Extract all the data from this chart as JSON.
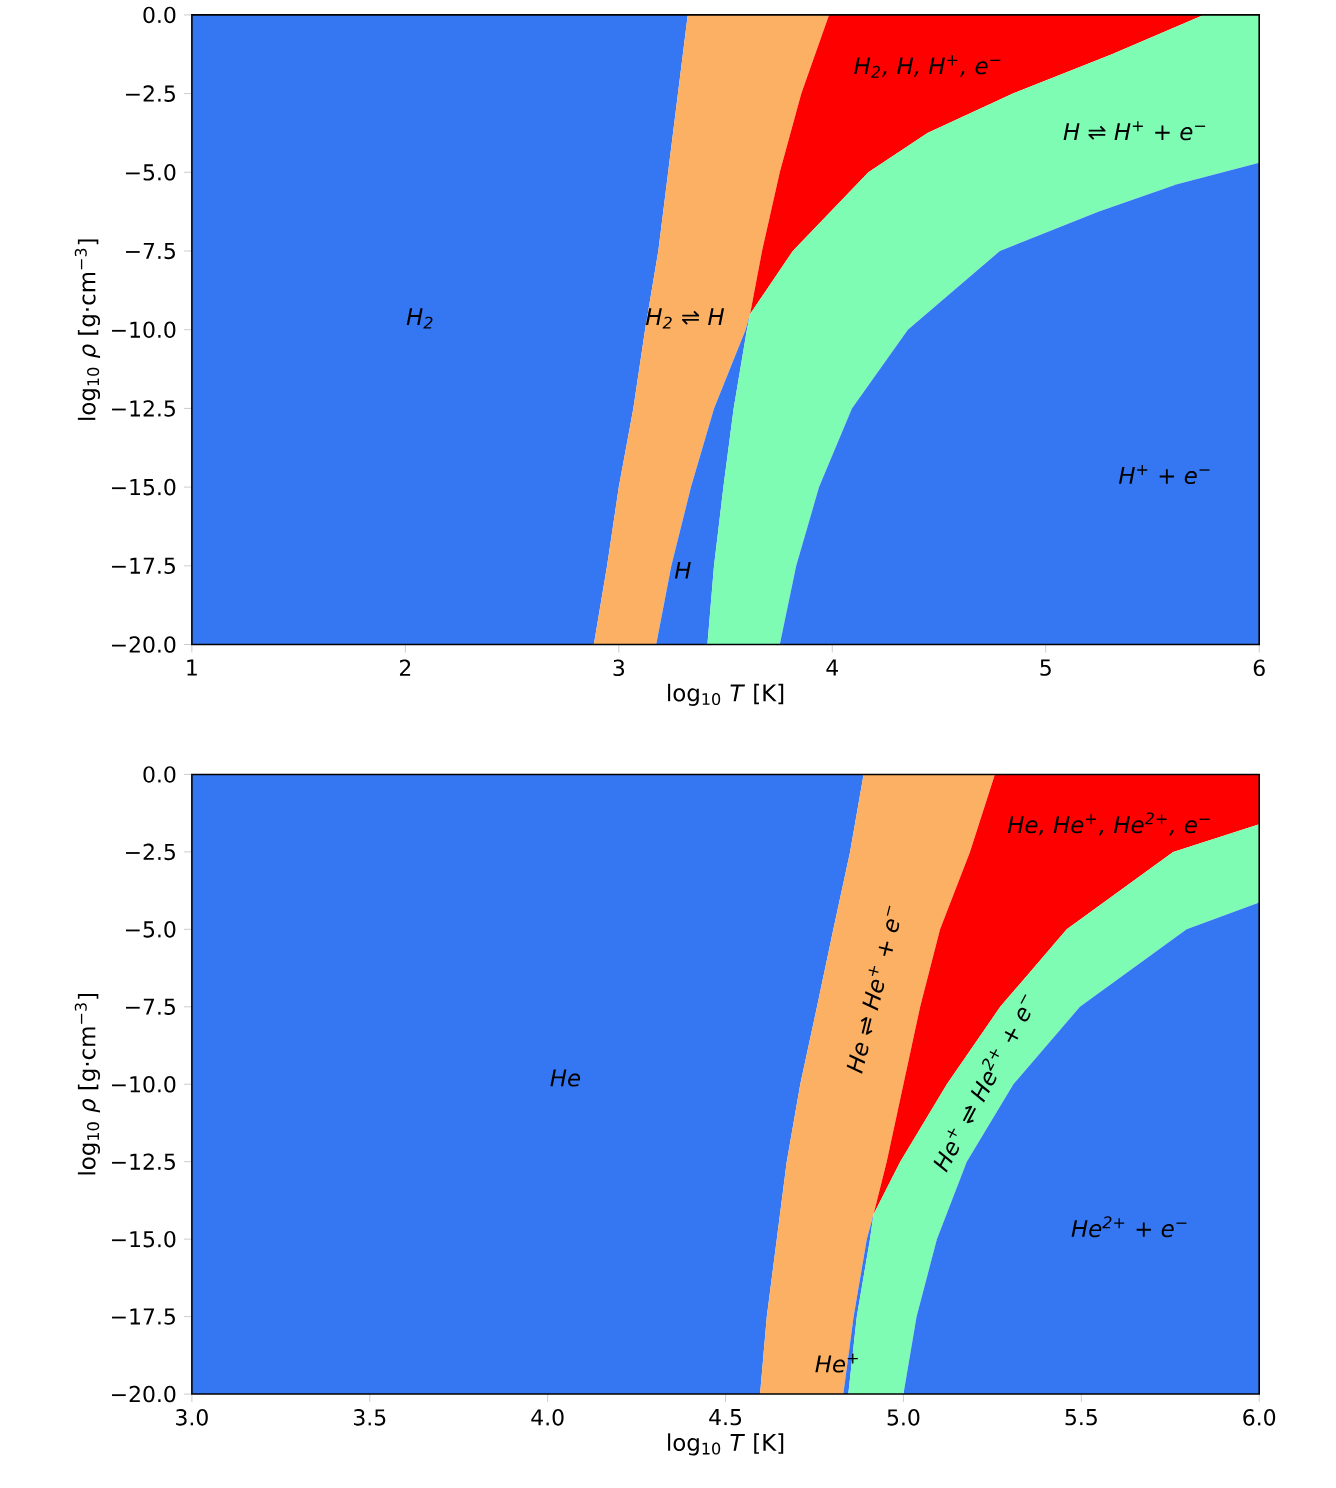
{
  "chart_data": [
    {
      "type": "area",
      "xlabel": "log$_{10}$ *T* [K]",
      "ylabel": "log$_{10}$ *ρ* [g·cm$^{−3}$]",
      "xlim": [
        1,
        6
      ],
      "ylim": [
        -20,
        0
      ],
      "xticks": [
        1,
        2,
        3,
        4,
        5,
        6
      ],
      "yticks": [
        {
          "value": 0,
          "label": "0.0"
        },
        {
          "value": -2.5,
          "label": "−2.5"
        },
        {
          "value": -5,
          "label": "−5.0"
        },
        {
          "value": -7.5,
          "label": "−7.5"
        },
        {
          "value": -10,
          "label": "−10.0"
        },
        {
          "value": -12.5,
          "label": "−12.5"
        },
        {
          "value": -15,
          "label": "−15.0"
        },
        {
          "value": -17.5,
          "label": "−17.5"
        },
        {
          "value": -20,
          "label": "−20.0"
        }
      ],
      "series": [
        {
          "color": "#3577f2",
          "x": [
            1,
            3.323,
            3.277,
            3.231,
            3.185,
            3.123,
            3.068,
            3.0,
            2.945,
            2.883,
            1
          ],
          "values": [
            0,
            0,
            -2.5,
            -5,
            -7.5,
            -10,
            -12.5,
            -15,
            -17.5,
            -20,
            -20
          ]
        },
        {
          "color": "#fcb063",
          "x": [
            3.323,
            3.277,
            3.231,
            3.185,
            3.123,
            3.068,
            3.0,
            2.945,
            2.883,
            3.175,
            3.246,
            3.338,
            3.446,
            3.594,
            3.615,
            3.671,
            3.754,
            3.855,
            3.985
          ],
          "values": [
            0,
            -2.5,
            -5,
            -7.5,
            -10,
            -12.5,
            -15,
            -17.5,
            -20,
            -20,
            -17.5,
            -15,
            -12.5,
            -10,
            -9.5,
            -7.5,
            -5,
            -2.5,
            0
          ]
        },
        {
          "color": "#ff0000",
          "x": [
            3.615,
            3.671,
            3.754,
            3.855,
            3.985,
            5.74,
            5.31,
            4.846,
            4.446,
            4.169,
            3.815
          ],
          "values": [
            -9.5,
            -7.5,
            -5,
            -2.5,
            0,
            0,
            -1.25,
            -2.5,
            -3.75,
            -5,
            -7.5
          ]
        },
        {
          "color": "#3577f2",
          "x": [
            3.615,
            3.594,
            3.446,
            3.338,
            3.246,
            3.175,
            3.415,
            3.446,
            3.49,
            3.538,
            3.6
          ],
          "values": [
            -9.5,
            -10,
            -12.5,
            -15,
            -17.5,
            -20,
            -20,
            -17.5,
            -15,
            -12.5,
            -10
          ]
        },
        {
          "color": "#7efcb3",
          "x": [
            3.415,
            3.446,
            3.49,
            3.538,
            3.6,
            3.615,
            3.815,
            4.169,
            4.446,
            4.846,
            5.31,
            5.74,
            6,
            6,
            5.615,
            5.246,
            4.785,
            4.354,
            4.092,
            3.938,
            3.831,
            3.754
          ],
          "values": [
            -20,
            -17.5,
            -15,
            -12.5,
            -10,
            -9.5,
            -7.5,
            -5,
            -3.75,
            -2.5,
            -1.25,
            0,
            0,
            -4.7,
            -5.38,
            -6.25,
            -7.5,
            -10,
            -12.5,
            -15,
            -17.5,
            -20
          ]
        },
        {
          "color": "#3577f2",
          "x": [
            6,
            6,
            3.754,
            3.831,
            3.938,
            4.092,
            4.354,
            4.785,
            5.246,
            5.615
          ],
          "values": [
            -4.7,
            -20,
            -20,
            -17.5,
            -15,
            -12.5,
            -10,
            -7.5,
            -6.25,
            -5.38
          ]
        }
      ],
      "annotations": [
        "H$_{2}$",
        "H$_{2}$ ⇌ H",
        "H$_{2}$, H, H$^{+}$, e$^{−}$",
        "H ⇌ H$^{+}$ + e$^{−}$",
        "H$^{+}$ + e$^{−}$",
        "H"
      ]
    },
    {
      "type": "area",
      "xlabel": "log$_{10}$ *T* [K]",
      "ylabel": "log$_{10}$ *ρ* [g·cm$^{−3}$]",
      "xlim": [
        3,
        6
      ],
      "ylim": [
        -20,
        0
      ],
      "xticks": [
        {
          "value": 3,
          "label": "3.0"
        },
        {
          "value": 3.5,
          "label": "3.5"
        },
        {
          "value": 4,
          "label": "4.0"
        },
        {
          "value": 4.5,
          "label": "4.5"
        },
        {
          "value": 5,
          "label": "5.0"
        },
        {
          "value": 5.5,
          "label": "5.5"
        },
        {
          "value": 6,
          "label": "6.0"
        }
      ],
      "yticks": [
        {
          "value": 0,
          "label": "0.0"
        },
        {
          "value": -2.5,
          "label": "−2.5"
        },
        {
          "value": -5,
          "label": "−5.0"
        },
        {
          "value": -7.5,
          "label": "−7.5"
        },
        {
          "value": -10,
          "label": "−10.0"
        },
        {
          "value": -12.5,
          "label": "−12.5"
        },
        {
          "value": -15,
          "label": "−15.0"
        },
        {
          "value": -17.5,
          "label": "−17.5"
        },
        {
          "value": -20,
          "label": "−20.0"
        }
      ],
      "series": [
        {
          "color": "#3577f2",
          "x": [
            3,
            4.888,
            4.85,
            4.803,
            4.757,
            4.71,
            4.672,
            4.644,
            4.616,
            4.597,
            3
          ],
          "values": [
            0,
            0,
            -2.5,
            -5,
            -7.5,
            -10,
            -12.5,
            -15,
            -17.5,
            -20,
            -20
          ]
        },
        {
          "color": "#fcb063",
          "x": [
            4.888,
            4.85,
            4.803,
            4.757,
            4.71,
            4.672,
            4.644,
            4.616,
            4.597,
            4.831,
            4.86,
            4.897,
            4.916,
            4.953,
            5.0,
            5.047,
            5.103,
            5.187,
            5.257
          ],
          "values": [
            0,
            -2.5,
            -5,
            -7.5,
            -10,
            -12.5,
            -15,
            -17.5,
            -20,
            -20,
            -17.5,
            -15,
            -14.2,
            -12.5,
            -10,
            -7.5,
            -5,
            -2.5,
            0
          ]
        },
        {
          "color": "#ff0000",
          "x": [
            4.916,
            4.953,
            5.0,
            5.047,
            5.103,
            5.187,
            5.257,
            6,
            6,
            5.758,
            5.459,
            5.272,
            5.122,
            4.991
          ],
          "values": [
            -14.2,
            -12.5,
            -10,
            -7.5,
            -5,
            -2.5,
            0,
            0,
            -1.61,
            -2.5,
            -5,
            -7.5,
            -10,
            -12.5
          ]
        },
        {
          "color": "#3577f2",
          "x": [
            4.916,
            4.897,
            4.86,
            4.831,
            4.845,
            4.869,
            4.906
          ],
          "values": [
            -14.2,
            -15,
            -17.5,
            -20,
            -20,
            -17.5,
            -15
          ]
        },
        {
          "color": "#7efcb3",
          "x": [
            4.845,
            4.869,
            4.906,
            4.916,
            4.991,
            5.122,
            5.272,
            5.459,
            5.758,
            6,
            6,
            5.796,
            5.496,
            5.309,
            5.178,
            5.094,
            5.037,
            5.0
          ],
          "values": [
            -20,
            -17.5,
            -15,
            -14.2,
            -12.5,
            -10,
            -7.5,
            -5,
            -2.5,
            -1.61,
            -4.13,
            -5,
            -7.5,
            -10,
            -12.5,
            -15,
            -17.5,
            -20
          ]
        },
        {
          "color": "#3577f2",
          "x": [
            6,
            6,
            5.0,
            5.037,
            5.094,
            5.178,
            5.309,
            5.496,
            5.796
          ],
          "values": [
            -4.13,
            -20,
            -20,
            -17.5,
            -15,
            -12.5,
            -10,
            -7.5,
            -5
          ]
        }
      ],
      "annotations": [
        "He",
        "He ⇌ He$^{+}$ + e$^{−}$",
        "He$^{+}$ ⇌ He$^{2+}$ + e$^{−}$",
        "He, He$^{+}$, He$^{2+}$, e$^{−}$",
        "He$^{2+}$ + e$^{−}$",
        "He$^{+}$"
      ]
    }
  ]
}
